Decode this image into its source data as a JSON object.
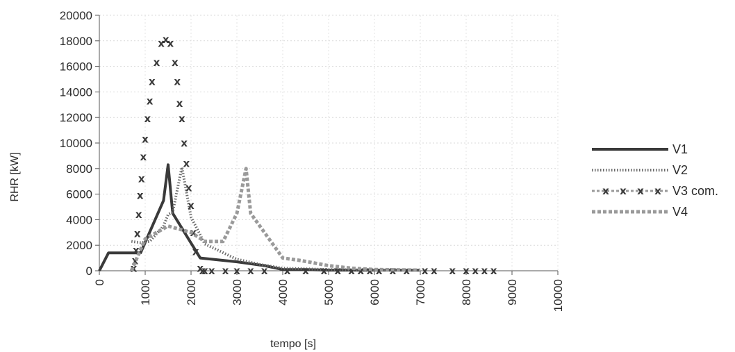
{
  "chart_data": {
    "type": "line",
    "title": "",
    "xlabel": "tempo [s]",
    "ylabel": "RHR [kW]",
    "xlim": [
      0,
      10000
    ],
    "ylim": [
      0,
      20000
    ],
    "x_ticks": [
      "0",
      "1000",
      "2000",
      "3000",
      "4000",
      "5000",
      "6000",
      "7000",
      "8000",
      "9000",
      "10000"
    ],
    "y_ticks": [
      "0",
      "2000",
      "4000",
      "6000",
      "8000",
      "10000",
      "12000",
      "14000",
      "16000",
      "18000",
      "20000"
    ],
    "grid": true,
    "legend_position": "right",
    "series": [
      {
        "name": "V1",
        "style": "solid-thick",
        "color": "#3a3a3a",
        "x": [
          0,
          200,
          700,
          900,
          1400,
          1500,
          1600,
          2200,
          3000,
          3600,
          4000,
          4500,
          5000,
          6000,
          7000
        ],
        "y": [
          0,
          1400,
          1400,
          1400,
          5500,
          8300,
          4500,
          1000,
          700,
          400,
          100,
          100,
          50,
          50,
          50
        ]
      },
      {
        "name": "V2",
        "style": "dotted",
        "color": "#6a6a6a",
        "x": [
          700,
          900,
          1100,
          1400,
          1500,
          1600,
          1800,
          2000,
          2300,
          3000,
          3500,
          4000,
          5000,
          6000,
          7000
        ],
        "y": [
          2300,
          2200,
          2300,
          3500,
          4400,
          4600,
          8100,
          4200,
          2100,
          900,
          500,
          200,
          100,
          50,
          50
        ]
      },
      {
        "name": "V3 com.",
        "style": "x-markers",
        "color": "#3a3a3a",
        "x": [
          750,
          780,
          800,
          830,
          860,
          890,
          920,
          960,
          1000,
          1050,
          1100,
          1150,
          1250,
          1350,
          1450,
          1550,
          1650,
          1700,
          1750,
          1800,
          1850,
          1900,
          1950,
          2000,
          2050,
          2100,
          2200,
          2250,
          2300,
          2450,
          2750,
          3000,
          3300,
          3600,
          4100,
          4500,
          4900,
          5200,
          5500,
          5700,
          5900,
          6100,
          6400,
          6700,
          7100,
          7300,
          7700,
          8000,
          8200,
          8400,
          8600
        ],
        "y": [
          200,
          800,
          1600,
          2900,
          4400,
          5900,
          7200,
          8900,
          10300,
          11900,
          13300,
          14800,
          16300,
          17800,
          18100,
          17800,
          16300,
          14800,
          13100,
          11900,
          10000,
          8400,
          6500,
          5100,
          3000,
          1500,
          200,
          0,
          0,
          0,
          0,
          0,
          0,
          0,
          0,
          0,
          0,
          0,
          0,
          0,
          0,
          0,
          0,
          0,
          0,
          0,
          0,
          0,
          0,
          0,
          0
        ]
      },
      {
        "name": "V4",
        "style": "dashed-grey",
        "color": "#9a9a9a",
        "x": [
          700,
          1000,
          1500,
          2000,
          2300,
          2700,
          3000,
          3200,
          3300,
          3700,
          4000,
          4400,
          5000,
          5500,
          6000,
          7000
        ],
        "y": [
          0,
          2500,
          3500,
          3000,
          2300,
          2300,
          4500,
          8000,
          4500,
          2500,
          1000,
          800,
          400,
          200,
          100,
          50
        ]
      }
    ]
  }
}
